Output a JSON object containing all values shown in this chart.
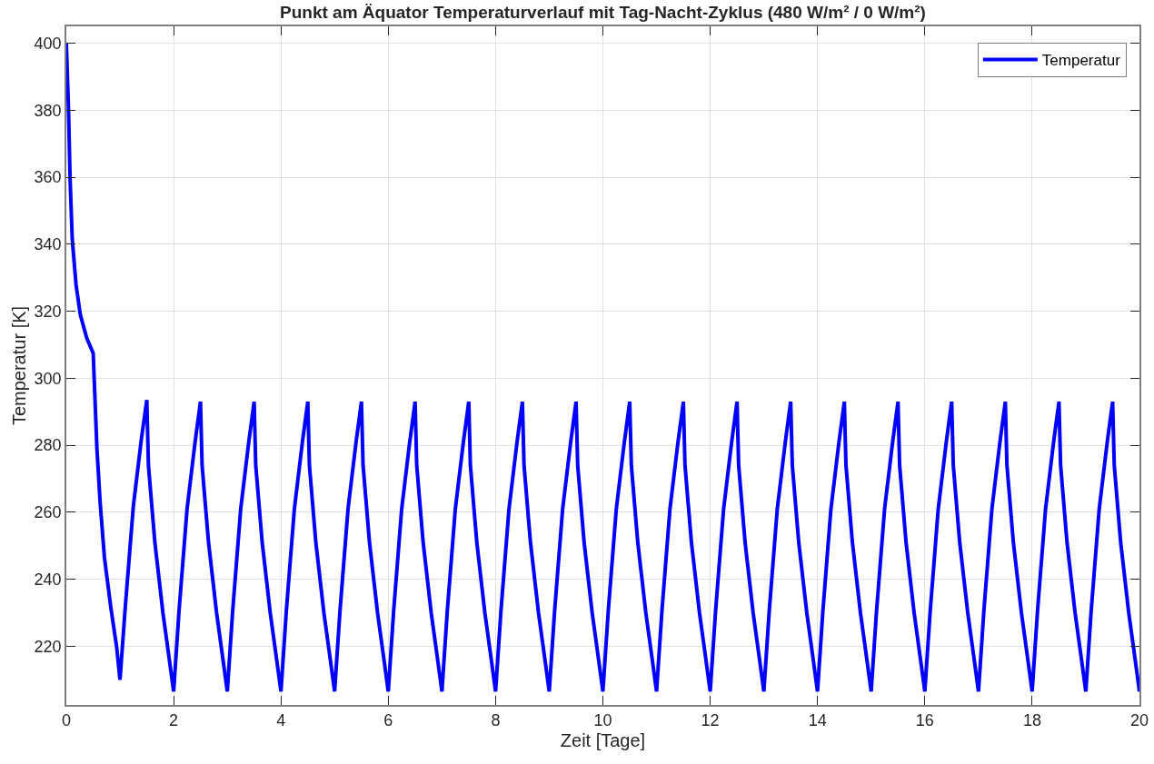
{
  "chart_data": {
    "type": "line",
    "title": "Punkt am Äquator Temperaturverlauf mit Tag-Nacht-Zyklus (480 W/m² / 0 W/m²)",
    "xlabel": "Zeit [Tage]",
    "ylabel": "Temperatur [K]",
    "x": [
      0,
      0.04,
      0.07,
      0.11,
      0.18,
      0.26,
      0.38,
      0.5,
      0.53,
      0.57,
      0.63,
      0.71,
      0.83,
      0.94,
      1.0,
      1.1,
      1.25,
      1.4,
      1.5,
      1.53,
      1.65,
      1.8,
      1.92,
      2.0,
      2.1,
      2.25,
      2.4,
      2.5,
      2.53,
      2.65,
      2.8,
      2.92,
      3.0,
      3.1,
      3.25,
      3.4,
      3.5,
      3.53,
      3.65,
      3.8,
      3.92,
      4.0,
      4.1,
      4.25,
      4.4,
      4.5,
      4.53,
      4.65,
      4.8,
      4.92,
      5.0,
      5.1,
      5.25,
      5.4,
      5.5,
      5.53,
      5.65,
      5.8,
      5.92,
      6.0,
      6.1,
      6.25,
      6.4,
      6.5,
      6.53,
      6.65,
      6.8,
      6.92,
      7.0,
      7.1,
      7.25,
      7.4,
      7.5,
      7.53,
      7.65,
      7.8,
      7.92,
      8.0,
      8.1,
      8.25,
      8.4,
      8.5,
      8.53,
      8.65,
      8.8,
      8.92,
      9.0,
      9.1,
      9.25,
      9.4,
      9.5,
      9.53,
      9.65,
      9.8,
      9.92,
      10.0,
      10.1,
      10.25,
      10.4,
      10.5,
      10.53,
      10.65,
      10.8,
      10.92,
      11.0,
      11.1,
      11.25,
      11.4,
      11.5,
      11.53,
      11.65,
      11.8,
      11.92,
      12.0,
      12.1,
      12.25,
      12.4,
      12.5,
      12.53,
      12.65,
      12.8,
      12.92,
      13.0,
      13.1,
      13.25,
      13.4,
      13.5,
      13.53,
      13.65,
      13.8,
      13.92,
      14.0,
      14.1,
      14.25,
      14.4,
      14.5,
      14.53,
      14.65,
      14.8,
      14.92,
      15.0,
      15.1,
      15.25,
      15.4,
      15.5,
      15.53,
      15.65,
      15.8,
      15.92,
      16.0,
      16.1,
      16.25,
      16.4,
      16.5,
      16.53,
      16.65,
      16.8,
      16.92,
      17.0,
      17.1,
      17.25,
      17.4,
      17.5,
      17.53,
      17.65,
      17.8,
      17.92,
      18.0,
      18.1,
      18.25,
      18.4,
      18.5,
      18.53,
      18.65,
      18.8,
      18.92,
      19.0,
      19.1,
      19.25,
      19.4,
      19.5,
      19.53,
      19.65,
      19.8,
      19.92,
      20.0
    ],
    "series": [
      {
        "name": "Temperatur",
        "color": "#0000ff",
        "values": [
          400,
          380.5,
          359.5,
          341.5,
          328,
          319,
          312,
          307.5,
          295.5,
          279,
          263,
          246.5,
          231.5,
          219.5,
          210,
          232,
          262,
          282,
          293.5,
          274,
          251,
          230,
          216,
          206.5,
          230.5,
          261,
          281,
          293,
          274,
          251,
          230,
          216,
          206.5,
          230.5,
          261,
          281,
          293,
          274,
          251,
          230,
          216,
          206.5,
          230.5,
          261,
          281,
          293,
          274,
          251,
          230,
          216,
          206.5,
          230.5,
          261,
          281,
          293,
          274,
          251,
          230,
          216,
          206.5,
          230.5,
          261,
          281,
          293,
          274,
          251,
          230,
          216,
          206.5,
          230.5,
          261,
          281,
          293,
          274,
          251,
          230,
          216,
          206.5,
          230.5,
          261,
          281,
          293,
          274,
          251,
          230,
          216,
          206.5,
          230.5,
          261,
          281,
          293,
          274,
          251,
          230,
          216,
          206.5,
          230.5,
          261,
          281,
          293,
          274,
          251,
          230,
          216,
          206.5,
          230.5,
          261,
          281,
          293,
          274,
          251,
          230,
          216,
          206.5,
          230.5,
          261,
          281,
          293,
          274,
          251,
          230,
          216,
          206.5,
          230.5,
          261,
          281,
          293,
          274,
          251,
          230,
          216,
          206.5,
          230.5,
          261,
          281,
          293,
          274,
          251,
          230,
          216,
          206.5,
          230.5,
          261,
          281,
          293,
          274,
          251,
          230,
          216,
          206.5,
          230.5,
          261,
          281,
          293,
          274,
          251,
          230,
          216,
          206.5,
          230.5,
          261,
          281,
          293,
          274,
          251,
          230,
          216,
          206.5,
          230.5,
          261,
          281,
          293,
          274,
          251,
          230,
          216,
          206.5,
          230.5,
          261,
          281,
          293,
          274,
          251,
          230,
          216,
          206.5
        ]
      }
    ],
    "xlim": [
      0,
      20
    ],
    "xticks": [
      0,
      2,
      4,
      6,
      8,
      10,
      12,
      14,
      16,
      18,
      20
    ],
    "ylim": [
      202.5,
      405
    ],
    "yticks": [
      220,
      240,
      260,
      280,
      300,
      320,
      340,
      360,
      380,
      400
    ],
    "grid": true,
    "legend": "top right",
    "line_style": "solid"
  }
}
